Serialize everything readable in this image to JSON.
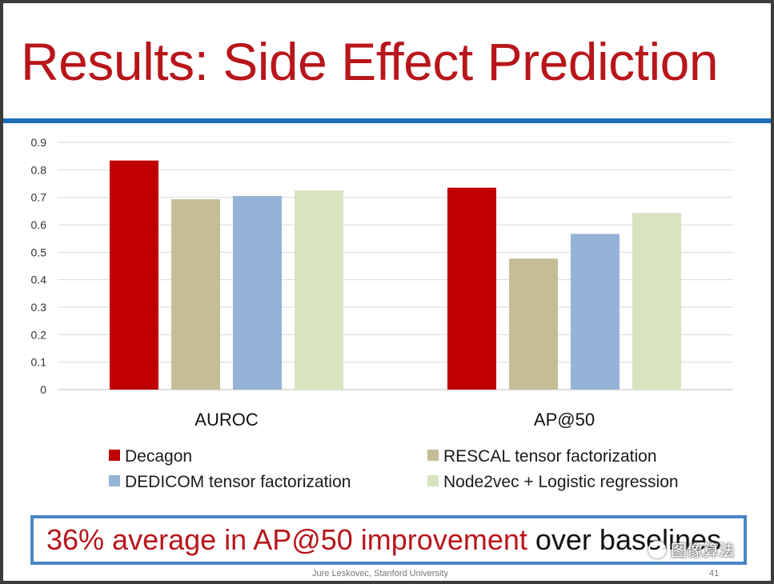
{
  "slide": {
    "title": "Results: Side Effect Prediction",
    "callout_highlight": "36% average in AP@50 improvement",
    "callout_rest": "over baselines",
    "footer_author": "Jure Leskovec, Stanford University",
    "footer_page": "41",
    "watermark_text": "图像算法"
  },
  "colors": {
    "title_red": "#b8161b",
    "rule_blue": "#1c6eb5",
    "callout_border": "#4a86c5"
  },
  "chart_data": {
    "type": "bar",
    "categories": [
      "AUROC",
      "AP@50"
    ],
    "series": [
      {
        "name": "Decagon",
        "values": [
          0.834,
          0.735
        ],
        "color": "#c00000"
      },
      {
        "name": "RESCAL tensor factorization",
        "values": [
          0.693,
          0.477
        ],
        "color": "#c4bd97"
      },
      {
        "name": "DEDICOM tensor factorization",
        "values": [
          0.705,
          0.567
        ],
        "color": "#95b3d7"
      },
      {
        "name": "Node2vec + Logistic regression",
        "values": [
          0.725,
          0.643
        ],
        "color": "#d7e4bd"
      }
    ],
    "ylim": [
      0,
      0.9
    ],
    "yticks": [
      "0",
      "0.1",
      "0.2",
      "0.3",
      "0.4",
      "0.5",
      "0.6",
      "0.7",
      "0.8",
      "0.9"
    ],
    "grid": true,
    "legend_position": "bottom"
  }
}
